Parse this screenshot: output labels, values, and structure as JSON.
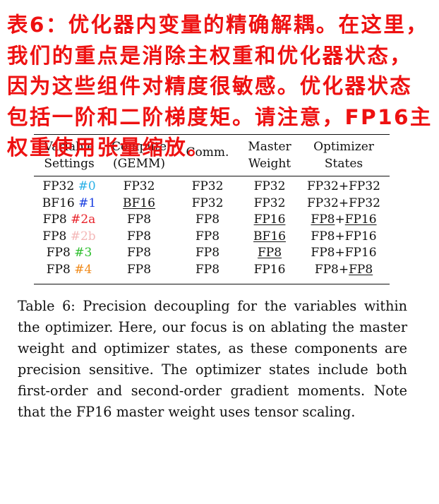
{
  "table": {
    "headers": [
      {
        "line1": "Variable",
        "line2": "Settings"
      },
      {
        "line1": "Compute",
        "line2": "(GEMM)"
      },
      {
        "line1": "Comm.",
        "line2": ""
      },
      {
        "line1": "Master",
        "line2": "Weight"
      },
      {
        "line1": "Optimizer",
        "line2": "States"
      }
    ],
    "rows": [
      {
        "name": "FP32",
        "tag": "#0",
        "tag_color": "#2ab0e6",
        "cells": [
          {
            "text": "FP32",
            "underline": false
          },
          {
            "text": "FP32",
            "underline": false
          },
          {
            "text": "FP32",
            "underline": false
          },
          {
            "a": "FP32",
            "a_u": false,
            "b": "FP32",
            "b_u": false
          }
        ]
      },
      {
        "name": "BF16",
        "tag": "#1",
        "tag_color": "#1a3fe0",
        "cells": [
          {
            "text": "BF16",
            "underline": true
          },
          {
            "text": "FP32",
            "underline": false
          },
          {
            "text": "FP32",
            "underline": false
          },
          {
            "a": "FP32",
            "a_u": false,
            "b": "FP32",
            "b_u": false
          }
        ]
      },
      {
        "name": "FP8",
        "tag": "#2a",
        "tag_color": "#e8222a",
        "cells": [
          {
            "text": "FP8",
            "underline": false
          },
          {
            "text": "FP8",
            "underline": false
          },
          {
            "text": "FP16",
            "underline": true
          },
          {
            "a": "FP8",
            "a_u": true,
            "b": "FP16",
            "b_u": true
          }
        ]
      },
      {
        "name": "FP8",
        "tag": "#2b",
        "tag_color": "#f4b8b8",
        "cells": [
          {
            "text": "FP8",
            "underline": false
          },
          {
            "text": "FP8",
            "underline": false
          },
          {
            "text": "BF16",
            "underline": true
          },
          {
            "a": "FP8",
            "a_u": false,
            "b": "FP16",
            "b_u": false
          }
        ]
      },
      {
        "name": "FP8",
        "tag": "#3",
        "tag_color": "#2fbf2f",
        "cells": [
          {
            "text": "FP8",
            "underline": false
          },
          {
            "text": "FP8",
            "underline": false
          },
          {
            "text": "FP8",
            "underline": true
          },
          {
            "a": "FP8",
            "a_u": false,
            "b": "FP16",
            "b_u": false
          }
        ]
      },
      {
        "name": "FP8",
        "tag": "#4",
        "tag_color": "#f08a1a",
        "cells": [
          {
            "text": "FP8",
            "underline": false
          },
          {
            "text": "FP8",
            "underline": false
          },
          {
            "text": "FP16",
            "underline": false
          },
          {
            "a": "FP8",
            "a_u": false,
            "b": "FP8",
            "b_u": true
          }
        ]
      }
    ]
  },
  "caption": "Table 6: Precision decoupling for the variables within the optimizer. Here, our focus is on ablating the master weight and optimizer states, as these components are precision sensitive. The optimizer states include both first-order and second-order gradient moments. Note that the FP16 master weight uses tensor scaling.",
  "overlay_text": "表6：优化器内变量的精确解耦。在这里，我们的重点是消除主权重和优化器状态，因为这些组件对精度很敏感。优化器状态包括一阶和二阶梯度矩。请注意，FP16主权重使用张量缩放。"
}
